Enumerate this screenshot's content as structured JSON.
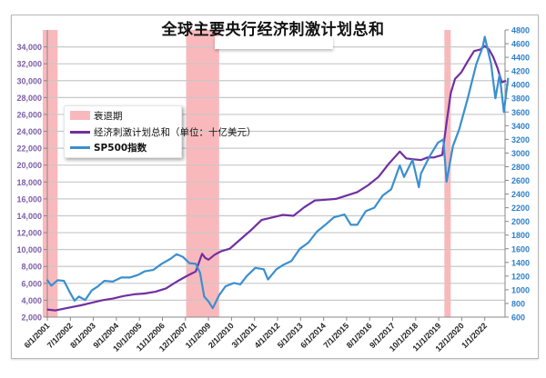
{
  "chart_data": {
    "type": "line",
    "title": "全球主要央行经济刺激计划总和",
    "xlabel": "",
    "ylabel_left": "",
    "ylabel_right": "",
    "x_tick_labels": [
      "6/1/2001",
      "7/1/2002",
      "8/1/2003",
      "9/1/2004",
      "10/1/2005",
      "11/1/2006",
      "12/1/2007",
      "1/1/2009",
      "2/1/2010",
      "3/1/2011",
      "4/1/2012",
      "5/1/2013",
      "6/1/2014",
      "7/1/2015",
      "8/1/2016",
      "9/1/2017",
      "10/1/2018",
      "11/1/2019",
      "12/1/2020",
      "1/1/2022"
    ],
    "y_left": {
      "min": 2000,
      "max": 34000,
      "step": 2000,
      "color": "#7b5ea7",
      "tick_labels": [
        "34,000",
        "32,000",
        "30,000",
        "28,000",
        "26,000",
        "24,000",
        "22,000",
        "20,000",
        "18,000",
        "16,000",
        "14,000",
        "12,000",
        "10,000",
        "8,000",
        "6,000",
        "4,000",
        "2,000"
      ]
    },
    "y_right": {
      "min": 600,
      "max": 4800,
      "step": 200,
      "color": "#2e7fc7",
      "tick_labels": [
        "4800",
        "4600",
        "4400",
        "4200",
        "4000",
        "3800",
        "3600",
        "3400",
        "3200",
        "3000",
        "2800",
        "2600",
        "2400",
        "2200",
        "2000",
        "1800",
        "1600",
        "1400",
        "1200",
        "1000",
        "800",
        "600"
      ]
    },
    "grid": true,
    "legend_position": "upper-left (inside plot)",
    "legend": [
      {
        "label": "衰退期",
        "type": "band",
        "color": "#f9b9bc"
      },
      {
        "label": "经济刺激计划总和（单位：十亿美元）",
        "type": "line",
        "color": "#7030a0"
      },
      {
        "label": "SP500指数",
        "type": "line",
        "color": "#3a8fd0"
      }
    ],
    "recessions": [
      {
        "start": 2001.2,
        "end": 2001.9
      },
      {
        "start": 2007.95,
        "end": 2009.5
      },
      {
        "start": 2020.1,
        "end": 2020.4
      }
    ],
    "series": [
      {
        "name": "经济刺激计划总和（单位：十亿美元）",
        "axis": "left",
        "color": "#7030a0",
        "x": [
          2001.4,
          2001.8,
          2002.2,
          2002.6,
          2003.0,
          2003.5,
          2004.0,
          2004.5,
          2005.0,
          2005.5,
          2006.0,
          2006.5,
          2007.0,
          2007.5,
          2008.0,
          2008.4,
          2008.7,
          2008.85,
          2009.0,
          2009.3,
          2009.6,
          2010.0,
          2010.5,
          2011.0,
          2011.5,
          2012.0,
          2012.5,
          2013.0,
          2013.5,
          2014.0,
          2014.5,
          2015.0,
          2015.5,
          2016.0,
          2016.5,
          2017.0,
          2017.5,
          2018.0,
          2018.3,
          2018.6,
          2019.0,
          2019.3,
          2019.6,
          2020.0,
          2020.2,
          2020.4,
          2020.6,
          2020.9,
          2021.2,
          2021.5,
          2021.8,
          2022.0,
          2022.2,
          2022.4,
          2022.6,
          2022.8,
          2023.0
        ],
        "values": [
          2900,
          2800,
          3000,
          3200,
          3400,
          3700,
          4000,
          4200,
          4500,
          4700,
          4800,
          5000,
          5400,
          6200,
          6900,
          7400,
          9500,
          9000,
          8800,
          9400,
          9800,
          10100,
          11200,
          12300,
          13500,
          13800,
          14100,
          14000,
          15000,
          15800,
          15900,
          16000,
          16400,
          16800,
          17600,
          18600,
          20200,
          21600,
          20800,
          20700,
          20600,
          20900,
          20900,
          21200,
          25000,
          28500,
          30200,
          31000,
          32300,
          33500,
          33700,
          34100,
          33700,
          32800,
          31500,
          29800,
          30000
        ]
      },
      {
        "name": "SP500指数",
        "axis": "right",
        "color": "#3a8fd0",
        "x": [
          2001.4,
          2001.6,
          2001.9,
          2002.2,
          2002.5,
          2002.7,
          2002.9,
          2003.2,
          2003.5,
          2003.8,
          2004.1,
          2004.5,
          2004.9,
          2005.3,
          2005.7,
          2006.0,
          2006.4,
          2006.8,
          2007.2,
          2007.5,
          2007.8,
          2008.1,
          2008.4,
          2008.6,
          2008.8,
          2009.0,
          2009.2,
          2009.5,
          2009.8,
          2010.2,
          2010.5,
          2010.8,
          2011.2,
          2011.6,
          2011.8,
          2012.2,
          2012.5,
          2012.9,
          2013.3,
          2013.7,
          2014.1,
          2014.5,
          2014.9,
          2015.4,
          2015.7,
          2016.0,
          2016.4,
          2016.8,
          2017.2,
          2017.6,
          2018.0,
          2018.2,
          2018.6,
          2018.9,
          2019.0,
          2019.4,
          2019.8,
          2020.05,
          2020.2,
          2020.5,
          2020.8,
          2021.2,
          2021.6,
          2021.9,
          2022.0,
          2022.3,
          2022.5,
          2022.7,
          2022.9,
          2023.1
        ],
        "values": [
          1150,
          1060,
          1140,
          1130,
          950,
          840,
          900,
          850,
          990,
          1050,
          1130,
          1120,
          1180,
          1180,
          1220,
          1270,
          1290,
          1380,
          1450,
          1520,
          1480,
          1390,
          1380,
          1250,
          900,
          830,
          730,
          920,
          1050,
          1100,
          1080,
          1200,
          1320,
          1300,
          1150,
          1300,
          1360,
          1420,
          1600,
          1690,
          1850,
          1950,
          2060,
          2100,
          1950,
          1950,
          2150,
          2200,
          2380,
          2470,
          2820,
          2650,
          2900,
          2500,
          2700,
          2950,
          3150,
          3200,
          2580,
          3100,
          3350,
          3800,
          4300,
          4550,
          4700,
          4300,
          3800,
          4150,
          3600,
          4100
        ]
      }
    ]
  }
}
